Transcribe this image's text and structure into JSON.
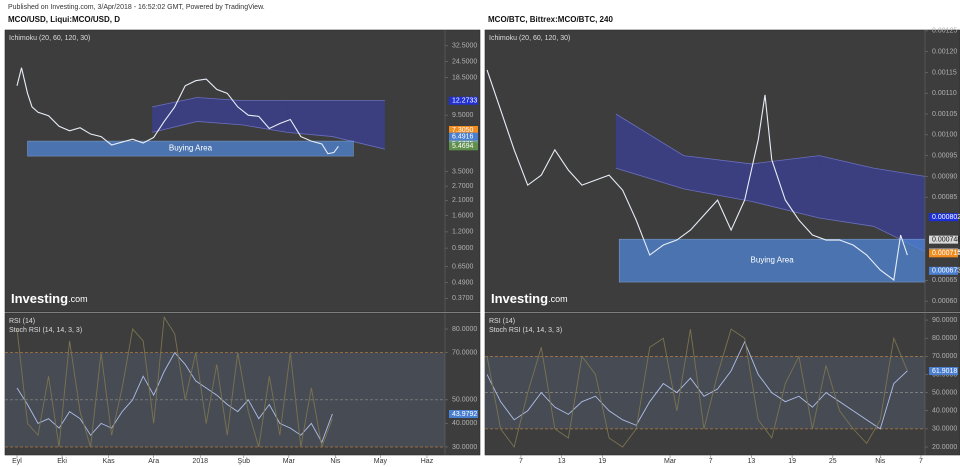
{
  "header": "Published on Investing.com, 3/Apr/2018 - 16:52:02 GMT, Powered by TradingView.",
  "chart_data": [
    {
      "type": "line",
      "title": "MCO/USD, Liqui:MCO/USD, D",
      "indicator": "Ichimoku (20, 60, 120, 30)",
      "logo": "Investing",
      "logo_suffix": ".com",
      "log_scale": true,
      "xlim": [
        -8,
        285
      ],
      "ylim": [
        0.29,
        43
      ],
      "yticks": [
        {
          "value": 32.5,
          "label": "32.5000"
        },
        {
          "value": 24.5,
          "label": "24.5000"
        },
        {
          "value": 18.5,
          "label": "18.5000"
        },
        {
          "value": 9.5,
          "label": "9.5000"
        },
        {
          "value": 3.5,
          "label": "3.5000"
        },
        {
          "value": 2.7,
          "label": "2.7000"
        },
        {
          "value": 2.1,
          "label": "2.1000"
        },
        {
          "value": 1.6,
          "label": "1.6000"
        },
        {
          "value": 1.2,
          "label": "1.2000"
        },
        {
          "value": 0.9,
          "label": "0.9000"
        },
        {
          "value": 0.65,
          "label": "0.6500"
        },
        {
          "value": 0.49,
          "label": "0.4900"
        },
        {
          "value": 0.37,
          "label": "0.3700"
        }
      ],
      "x": [
        0,
        3,
        7,
        10,
        14,
        21,
        28,
        35,
        42,
        49,
        56,
        63,
        70,
        77,
        84,
        91,
        98,
        105,
        112,
        119,
        126,
        133,
        140,
        147,
        154,
        161,
        168,
        175,
        182,
        189,
        196,
        203,
        207,
        211,
        214
      ],
      "values": [
        16,
        22,
        14,
        11,
        10,
        9.4,
        7.8,
        7.2,
        7.6,
        6.8,
        6.5,
        5.6,
        5.9,
        6.2,
        5.8,
        6.4,
        8.5,
        11,
        16,
        17.5,
        18,
        15,
        14,
        11,
        9.5,
        9.3,
        7.5,
        8.2,
        8.8,
        6.5,
        6.0,
        5.7,
        4.8,
        4.9,
        5.47
      ],
      "color": "#e8eef8",
      "cloud": {
        "x": [
          90,
          120,
          150,
          180,
          210,
          245
        ],
        "upper": [
          11,
          13,
          12.3,
          12.3,
          12.3,
          12.3
        ],
        "lower": [
          7,
          8.5,
          8,
          7,
          6.5,
          5.2
        ],
        "color": "#3b3f96"
      },
      "buying_area": {
        "label": "Buying Area",
        "x": [
          7,
          224
        ],
        "y": [
          4.6,
          6.0
        ],
        "color": "#4f86d6"
      },
      "price_labels": [
        {
          "value": 12.2733,
          "label": "12.2733",
          "color": "#2130d0"
        },
        {
          "value": 7.305,
          "label": "7.3050",
          "color": "#f08c20"
        },
        {
          "value": 6.4916,
          "label": "6.4916",
          "color": "#4a7fd0"
        },
        {
          "value": 5.6775,
          "label": "5.6775",
          "color": "#6f9a9a"
        },
        {
          "value": 5.4694,
          "label": "5.4694",
          "color": "#5f8f4a"
        }
      ]
    },
    {
      "type": "line",
      "xlim": [
        -8,
        285
      ],
      "ylim": [
        26.6,
        86.8
      ],
      "yticks": [
        {
          "value": 80,
          "label": "80.0000"
        },
        {
          "value": 70,
          "label": "70.0000"
        },
        {
          "value": 50,
          "label": "50.0000"
        },
        {
          "value": 40,
          "label": "40.0000"
        },
        {
          "value": 30,
          "label": "30.0000"
        }
      ],
      "hlines": [
        70,
        50,
        30
      ],
      "xticks": [
        {
          "value": 0,
          "label": "Eyl"
        },
        {
          "value": 30,
          "label": "Eki"
        },
        {
          "value": 61,
          "label": "Kas"
        },
        {
          "value": 91,
          "label": "Ara"
        },
        {
          "value": 122,
          "label": "2018"
        },
        {
          "value": 151,
          "label": "Şub"
        },
        {
          "value": 181,
          "label": "Mar"
        },
        {
          "value": 212,
          "label": "Nis"
        },
        {
          "value": 242,
          "label": "May"
        },
        {
          "value": 273,
          "label": "Haz"
        }
      ],
      "x": [
        0,
        7,
        14,
        21,
        28,
        35,
        42,
        49,
        56,
        63,
        70,
        77,
        84,
        91,
        98,
        105,
        112,
        119,
        126,
        133,
        140,
        147,
        154,
        161,
        168,
        175,
        182,
        189,
        196,
        203,
        210
      ],
      "series": [
        {
          "name": "RSI (14)",
          "color": "#aebde8",
          "values": [
            55,
            48,
            40,
            42,
            38,
            45,
            42,
            35,
            40,
            38,
            45,
            50,
            60,
            52,
            62,
            70,
            65,
            58,
            55,
            52,
            48,
            45,
            50,
            42,
            48,
            40,
            38,
            35,
            40,
            32,
            44
          ]
        },
        {
          "name": "Stoch RSI (14, 14, 3, 3)",
          "color": "#7a7350",
          "values": [
            80,
            40,
            35,
            60,
            30,
            75,
            45,
            30,
            70,
            35,
            55,
            80,
            75,
            40,
            85,
            78,
            50,
            70,
            40,
            65,
            35,
            70,
            45,
            30,
            60,
            35,
            70,
            30,
            55,
            30,
            42
          ]
        }
      ],
      "price_labels": [
        {
          "value": 43.9792,
          "label": "43.9792",
          "color": "#4a7fd0"
        }
      ]
    },
    {
      "type": "line",
      "title": "MCO/BTC, Bittrex:MCO/BTC, 240",
      "indicator": "Ichimoku (20, 60, 120, 30)",
      "logo": "Investing",
      "logo_suffix": ".com",
      "log_scale": false,
      "xlim": [
        0.7,
        65.6
      ],
      "ylim": [
        0.000574,
        0.001252
      ],
      "yticks": [
        {
          "value": 0.00125,
          "label": "0.00125"
        },
        {
          "value": 0.0012,
          "label": "0.00120"
        },
        {
          "value": 0.00115,
          "label": "0.00115"
        },
        {
          "value": 0.0011,
          "label": "0.00110"
        },
        {
          "value": 0.00105,
          "label": "0.00105"
        },
        {
          "value": 0.001,
          "label": "0.00100"
        },
        {
          "value": 0.00095,
          "label": "0.00095"
        },
        {
          "value": 0.0009,
          "label": "0.00090"
        },
        {
          "value": 0.00085,
          "label": "0.00085"
        },
        {
          "value": 0.00065,
          "label": "0.00065"
        },
        {
          "value": 0.0006,
          "label": "0.00060"
        }
      ],
      "x": [
        1,
        3,
        5,
        7,
        9,
        11,
        13,
        15,
        17,
        19,
        21,
        23,
        25,
        27,
        29,
        31,
        33,
        35,
        37,
        39,
        41,
        42,
        43,
        45,
        47,
        49,
        51,
        53,
        55,
        57,
        59,
        61,
        62,
        63
      ],
      "values": [
        0.001156,
        0.00106,
        0.000964,
        0.000879,
        0.000903,
        0.000964,
        0.000915,
        0.000879,
        0.000891,
        0.000903,
        0.000867,
        0.000795,
        0.000711,
        0.000735,
        0.000747,
        0.000771,
        0.000807,
        0.000843,
        0.000771,
        0.000843,
        0.000988,
        0.001096,
        0.00094,
        0.000843,
        0.000795,
        0.000759,
        0.000747,
        0.000747,
        0.000735,
        0.000711,
        0.000675,
        0.000651,
        0.000759,
        0.000711
      ],
      "color": "#e8eef8",
      "cloud": {
        "x": [
          20,
          30,
          40,
          50,
          58,
          65.6
        ],
        "upper": [
          0.00105,
          0.00095,
          0.00093,
          0.00095,
          0.00092,
          0.0009
        ],
        "lower": [
          0.00092,
          0.00087,
          0.00084,
          0.0008,
          0.00078,
          0.00072
        ],
        "color": "#3b3f96"
      },
      "buying_area": {
        "label": "Buying Area",
        "x": [
          20.5,
          65.6
        ],
        "y": [
          0.000646,
          0.000749
        ],
        "color": "#4f86d6"
      },
      "price_labels": [
        {
          "value": 0.000802,
          "label": "0.000802",
          "color": "#1a2fd8"
        },
        {
          "value": 0.000748,
          "label": "0.000748",
          "color": "#d8d8d8"
        },
        {
          "value": 0.000718,
          "label": "0.000718",
          "color": "#8a8a8a"
        },
        {
          "value": 0.000715,
          "label": "0.000715",
          "color": "#f08c20"
        },
        {
          "value": 0.000673,
          "label": "0.000673",
          "color": "#4a7fd0"
        }
      ]
    },
    {
      "type": "line",
      "xlim": [
        0.7,
        65.6
      ],
      "ylim": [
        15.6,
        93.9
      ],
      "yticks": [
        {
          "value": 90,
          "label": "90.0000"
        },
        {
          "value": 80,
          "label": "80.0000"
        },
        {
          "value": 70,
          "label": "70.0000"
        },
        {
          "value": 60,
          "label": "60.0000"
        },
        {
          "value": 50,
          "label": "50.0000"
        },
        {
          "value": 40,
          "label": "40.0000"
        },
        {
          "value": 30,
          "label": "30.0000"
        },
        {
          "value": 20,
          "label": "20.0000"
        }
      ],
      "hlines": [
        70,
        50,
        30
      ],
      "xticks": [
        {
          "value": 6,
          "label": "7"
        },
        {
          "value": 12,
          "label": "13"
        },
        {
          "value": 18,
          "label": "19"
        },
        {
          "value": 28,
          "label": "Mar"
        },
        {
          "value": 34,
          "label": "7"
        },
        {
          "value": 40,
          "label": "13"
        },
        {
          "value": 46,
          "label": "19"
        },
        {
          "value": 52,
          "label": "25"
        },
        {
          "value": 59,
          "label": "Nis"
        },
        {
          "value": 65,
          "label": "7"
        }
      ],
      "x": [
        1,
        3,
        5,
        7,
        9,
        11,
        13,
        15,
        17,
        19,
        21,
        23,
        25,
        27,
        29,
        31,
        33,
        35,
        37,
        39,
        41,
        43,
        45,
        47,
        49,
        51,
        53,
        55,
        57,
        59,
        61,
        63
      ],
      "series": [
        {
          "name": "RSI (14)",
          "color": "#aebde8",
          "values": [
            60,
            45,
            35,
            40,
            50,
            42,
            38,
            45,
            48,
            40,
            35,
            32,
            45,
            55,
            50,
            58,
            48,
            52,
            62,
            78,
            60,
            50,
            45,
            48,
            42,
            50,
            45,
            40,
            35,
            30,
            55,
            62
          ]
        },
        {
          "name": "Stoch RSI (14, 14, 3, 3)",
          "color": "#7a7350",
          "values": [
            70,
            30,
            20,
            50,
            75,
            30,
            25,
            70,
            60,
            25,
            20,
            30,
            75,
            80,
            40,
            85,
            30,
            60,
            85,
            80,
            35,
            25,
            55,
            70,
            30,
            65,
            40,
            30,
            22,
            35,
            80,
            62
          ]
        }
      ],
      "price_labels": [
        {
          "value": 61.9018,
          "label": "61.9018",
          "color": "#4a7fd0"
        }
      ]
    }
  ]
}
